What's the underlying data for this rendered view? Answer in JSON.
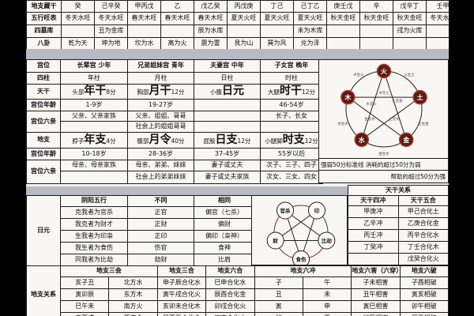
{
  "top_table": {
    "rows": [
      {
        "label": "地支藏干",
        "cells": [
          "癸",
          "己辛癸",
          "甲丙戊",
          "乙",
          "戊乙癸",
          "丙戊庚",
          "丁己",
          "己丁乙",
          "庚壬戊",
          "辛",
          "戊辛丁",
          "壬甲"
        ]
      },
      {
        "label": "五行旺表",
        "cells": [
          "冬天水旺",
          "冬天水旺",
          "春天木旺",
          "春天木旺",
          "春天木旺",
          "夏天火旺",
          "夏天火旺",
          "夏天火旺",
          "秋天金旺",
          "秋天金旺",
          "秋天金旺",
          "冬天水旺"
        ]
      },
      {
        "label": "四墓库",
        "cells": [
          "",
          "丑为金库",
          "",
          "",
          "辰为水库",
          "",
          "",
          "未为木库",
          "",
          "",
          "戌为火库",
          ""
        ]
      },
      {
        "label": "八卦",
        "cells": [
          "乾为天",
          "坤为地",
          "坎为水",
          "离为火",
          "震为雷",
          "艮为山",
          "巽为风",
          "兑为泽",
          "",
          "",
          "",
          ""
        ]
      }
    ]
  },
  "palace_table": {
    "rows": [
      {
        "label": "宫位",
        "type": "plain",
        "bold": true,
        "cells": [
          "长辈宫 少年",
          "兄弟姐妹宫 青年",
          "夫妻宫 中年",
          "子女宫 晚年"
        ]
      },
      {
        "label": "四柱",
        "type": "plain",
        "cells": [
          "年柱",
          "月柱",
          "日柱",
          "时柱"
        ]
      },
      {
        "label": "天干",
        "type": "big",
        "cells": [
          {
            "pre": "头部",
            "big": "年干",
            "post": "8分"
          },
          {
            "pre": "胸部",
            "big": "月干",
            "post": "12分"
          },
          {
            "pre": "小腹",
            "big": "日元",
            "post": ""
          },
          {
            "pre": "大腿",
            "big": "时干",
            "post": "12分"
          }
        ]
      },
      {
        "label": "宫位年龄",
        "type": "plain",
        "cells": [
          "1-9岁",
          "19-27岁",
          "",
          "46-54岁"
        ]
      },
      {
        "label": "宫位六亲",
        "type": "plain",
        "rowspan": 2,
        "cells": [
          "父亲、父亲家族",
          "父亲、姐姐、哥哥",
          "",
          "长子、长女"
        ]
      },
      {
        "type": "cont",
        "cells": [
          "",
          "社会上的姐姐哥哥",
          "",
          ""
        ]
      },
      {
        "label": "地支",
        "type": "big",
        "cells": [
          {
            "pre": "脖子",
            "big": "年支",
            "post": "4分"
          },
          {
            "pre": "腹部",
            "big": "月令",
            "post": "40分"
          },
          {
            "pre": "屁股",
            "big": "日支",
            "post": "12分"
          },
          {
            "pre": "小腿脚",
            "big": "时支",
            "post": "12分"
          }
        ]
      },
      {
        "label": "宫位年龄",
        "type": "plain",
        "cells": [
          "10-18岁",
          "28-36岁",
          "37-45岁",
          "55岁以后"
        ]
      },
      {
        "label": "宫位六亲",
        "type": "plain",
        "rowspan": 2,
        "cells": [
          "母亲、母亲家族",
          "母亲、弟弟、妹妹",
          "妻子或丈夫",
          "次子、三子、四子"
        ]
      },
      {
        "type": "cont",
        "cells": [
          "",
          "社会上的弟弟妹妹",
          "妻子或丈夫家族",
          "次女、三女、四女"
        ]
      }
    ]
  },
  "five_elements_panel": {
    "elements": [
      "火",
      "土",
      "金",
      "水",
      "木"
    ],
    "sheng_labels": [
      "木生火",
      "火生土",
      "土生金",
      "金生水",
      "水生木"
    ],
    "ke_labels": [
      "木克土",
      "火克金",
      "土克水",
      "水克火",
      "金克木"
    ],
    "note_line1": "强弱50分标准线 消耗的超过50分为弱",
    "note_line2": "帮助的超过50分为强",
    "circle_fill": "#5e1a14",
    "circle_ring": "#a93b2e"
  },
  "day_master_table": {
    "label": "日元",
    "header": [
      "阴阳五行",
      "不同",
      "相同"
    ],
    "rows": [
      [
        "克我者为官杀",
        "正官",
        "偏官（七杀）"
      ],
      [
        "我克者为财才",
        "正财",
        "偏财"
      ],
      [
        "生我者为印枭",
        "正印",
        "偏印（枭神）"
      ],
      [
        "我生者为食伤",
        "伤官",
        "食神"
      ],
      [
        "同我者为比劫",
        "劫财",
        "比肩"
      ]
    ]
  },
  "ten_gods_panel": {
    "nodes": [
      "官杀",
      "印",
      "比劫",
      "食伤",
      "财"
    ]
  },
  "stem_relations_table": {
    "title": "天干关系",
    "header": [
      "天干四冲",
      "天干五合"
    ],
    "rows": [
      [
        "甲庚冲",
        "甲己合化土"
      ],
      [
        "乙辛冲",
        "乙庚合化金"
      ],
      [
        "丙壬冲",
        "丙辛合化水"
      ],
      [
        "丁癸冲",
        "丁壬合化木"
      ],
      [
        "",
        "戊癸合化火"
      ]
    ]
  },
  "branch_relations_table": {
    "label": "地支关系",
    "headers": [
      "地支三会",
      "地支三合",
      "地支六合",
      "地支六冲",
      "地支六害（六穿）",
      "地支六破"
    ],
    "rows": [
      [
        "亥子丑",
        "北方水",
        "申子辰合化水",
        "巳申合化水",
        "子",
        "午",
        "子未相害",
        "子酉相破"
      ],
      [
        "寅卯辰",
        "东方木",
        "寅午戌合化火",
        "辰酉合化金",
        "丑",
        "未",
        "丑午相害",
        "寅亥相破"
      ],
      [
        "巳午未",
        "南方火",
        "亥卯未合化木",
        "卯戌合化火",
        "寅",
        "申",
        "寅巳相害",
        "卯午相破"
      ],
      [
        "申酉戌",
        "西方金",
        "巳酉丑合化金",
        "寅亥合化木",
        "卯",
        "酉",
        "卯辰相害",
        "辰丑相破"
      ]
    ]
  },
  "colors": {
    "separator_bar": "#b7bbc4",
    "table_header_bg": "#94a0b2",
    "element_circle": "#5e1a14",
    "border": "#1d1d1d"
  }
}
